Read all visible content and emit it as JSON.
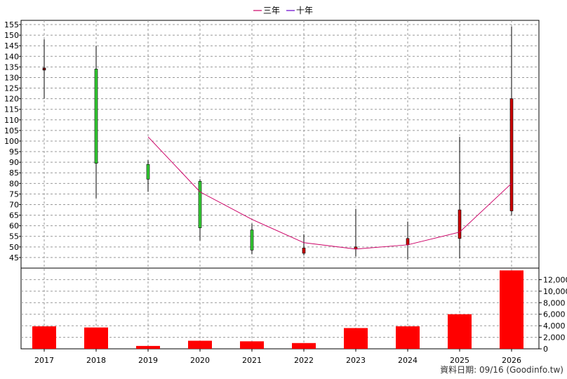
{
  "chart_data": {
    "type": "candlestick",
    "legend": [
      {
        "name": "三年",
        "color": "#cc0066"
      },
      {
        "name": "十年",
        "color": "#6600cc"
      }
    ],
    "footer": "資料日期: 09/16  (Goodinfo.tw)",
    "categories": [
      "2017",
      "2018",
      "2019",
      "2020",
      "2021",
      "2022",
      "2023",
      "2024",
      "2025",
      "2026"
    ],
    "price_axis": {
      "ylim": [
        40,
        157
      ],
      "ticks": [
        45,
        50,
        55,
        60,
        65,
        70,
        75,
        80,
        85,
        90,
        95,
        100,
        105,
        110,
        115,
        120,
        125,
        130,
        135,
        140,
        145,
        150,
        155
      ]
    },
    "candles": [
      {
        "year": "2017",
        "open": 133.5,
        "close": 134.5,
        "high": 148,
        "low": 120,
        "color": "#6b0000"
      },
      {
        "year": "2018",
        "open": 134,
        "close": 89.5,
        "high": 145,
        "low": 73,
        "color": "#33cc33"
      },
      {
        "year": "2019",
        "open": 89,
        "close": 82,
        "high": 91,
        "low": 76,
        "color": "#33cc33"
      },
      {
        "year": "2020",
        "open": 81,
        "close": 59,
        "high": 82,
        "low": 53,
        "color": "#33cc33"
      },
      {
        "year": "2021",
        "open": 58,
        "close": 48.5,
        "high": 61,
        "low": 46.5,
        "color": "#33cc33"
      },
      {
        "year": "2022",
        "open": 47,
        "close": 49.5,
        "high": 56,
        "low": 46,
        "color": "#cc0000"
      },
      {
        "year": "2023",
        "open": 49,
        "close": 50,
        "high": 68,
        "low": 45.5,
        "color": "#cc0000"
      },
      {
        "year": "2024",
        "open": 51,
        "close": 54,
        "high": 62,
        "low": 44,
        "color": "#cc0000"
      },
      {
        "year": "2025",
        "open": 54,
        "close": 67.5,
        "high": 102,
        "low": 44.5,
        "color": "#cc0000"
      },
      {
        "year": "2026",
        "open": 67,
        "close": 120,
        "high": 154,
        "low": 65,
        "color": "#cc0000"
      }
    ],
    "line_three_year": {
      "name": "三年",
      "color": "#cc0066",
      "points": [
        {
          "year": "2019",
          "value": 102
        },
        {
          "year": "2020",
          "value": 76
        },
        {
          "year": "2021",
          "value": 63
        },
        {
          "year": "2022",
          "value": 52
        },
        {
          "year": "2023",
          "value": 49
        },
        {
          "year": "2024",
          "value": 51
        },
        {
          "year": "2025",
          "value": 57
        },
        {
          "year": "2026",
          "value": 80
        }
      ]
    },
    "volume_axis": {
      "ylim": [
        0,
        14000
      ],
      "ticks": [
        "0",
        "2,000",
        "4,000",
        "6,000",
        "8,000",
        "10,000",
        "12,000"
      ],
      "tick_values": [
        0,
        2000,
        4000,
        6000,
        8000,
        10000,
        12000
      ]
    },
    "volume": {
      "color": "#ff0000",
      "values": [
        3900,
        3700,
        500,
        1400,
        1300,
        1000,
        3600,
        3900,
        6000,
        13600
      ]
    },
    "grid": true
  }
}
